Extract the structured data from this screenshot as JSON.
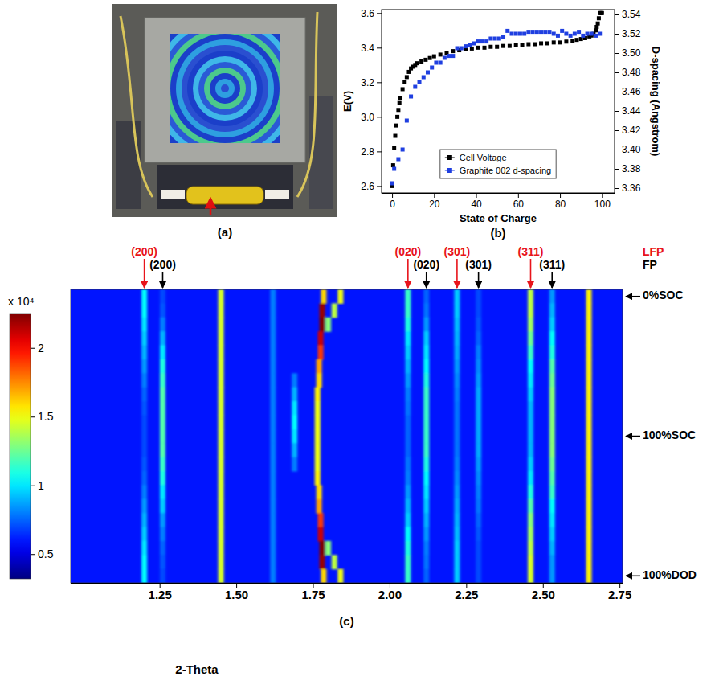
{
  "photo": {
    "panel": "(a)"
  },
  "chart_data": [
    {
      "type": "scatter",
      "panel": "(b)",
      "x_label": "State of Charge",
      "y_label": "E(V)",
      "y2_label": "D-spacing (Angstrom)",
      "xlim": [
        -5,
        106
      ],
      "xticks": [
        0,
        20,
        40,
        60,
        80,
        100
      ],
      "ylim": [
        2.56,
        3.62
      ],
      "yticks": [
        2.6,
        2.8,
        {
          "value": 3,
          "label": "3.0"
        },
        3.2,
        3.4,
        3.6
      ],
      "y2lim": [
        3.355,
        3.545
      ],
      "y2ticks": [
        3.36,
        3.38,
        {
          "value": 3.4,
          "label": "3.40"
        },
        3.42,
        3.44,
        3.46,
        3.48,
        {
          "value": 3.5,
          "label": "3.50"
        },
        3.52,
        3.54
      ],
      "legend": "lower center",
      "series": [
        {
          "name": "Cell Voltage",
          "color": "#000000",
          "marker": "square",
          "x": [
            0,
            0.5,
            1,
            1.5,
            2,
            2.5,
            3,
            3.5,
            4,
            5,
            6,
            7,
            8,
            9,
            10,
            11,
            12,
            14,
            16,
            18,
            20,
            23,
            26,
            29,
            32,
            35,
            38,
            41,
            44,
            47,
            50,
            53,
            56,
            59,
            62,
            65,
            68,
            71,
            74,
            77,
            80,
            83,
            86,
            88,
            90,
            92,
            94,
            95,
            96,
            97,
            97.5,
            98,
            98.5,
            99,
            99.5,
            100
          ],
          "values": [
            2.6,
            2.72,
            2.82,
            2.89,
            2.95,
            3.0,
            3.04,
            3.08,
            3.11,
            3.16,
            3.2,
            3.23,
            3.26,
            3.28,
            3.29,
            3.3,
            3.31,
            3.32,
            3.33,
            3.34,
            3.35,
            3.36,
            3.37,
            3.38,
            3.385,
            3.39,
            3.395,
            3.4,
            3.4,
            3.405,
            3.405,
            3.41,
            3.41,
            3.415,
            3.415,
            3.42,
            3.42,
            3.425,
            3.425,
            3.43,
            3.43,
            3.435,
            3.44,
            3.445,
            3.45,
            3.455,
            3.465,
            3.47,
            3.48,
            3.5,
            3.52,
            3.54,
            3.57,
            3.6,
            3.6,
            3.6
          ]
        },
        {
          "name": "Graphite 002 d-spacing",
          "color": "#1f3fe0",
          "marker": "square",
          "axis": "y2",
          "x": [
            0,
            1,
            3,
            5,
            7,
            9,
            11,
            13,
            15,
            17,
            19,
            21,
            23,
            25,
            27,
            29,
            31,
            33,
            35,
            37,
            39,
            41,
            43,
            45,
            47,
            49,
            51,
            53,
            55,
            57,
            59,
            61,
            63,
            65,
            67,
            69,
            71,
            73,
            75,
            77,
            79,
            81,
            83,
            85,
            87,
            89,
            91,
            93,
            95,
            97,
            99
          ],
          "values": [
            3.365,
            3.38,
            3.39,
            3.4,
            3.43,
            3.455,
            3.465,
            3.47,
            3.475,
            3.48,
            3.485,
            3.49,
            3.49,
            3.495,
            3.497,
            3.497,
            3.505,
            3.505,
            3.507,
            3.508,
            3.51,
            3.512,
            3.512,
            3.512,
            3.515,
            3.515,
            3.515,
            3.517,
            3.523,
            3.52,
            3.52,
            3.52,
            3.52,
            3.522,
            3.522,
            3.522,
            3.522,
            3.522,
            3.522,
            3.52,
            3.518,
            3.523,
            3.52,
            3.518,
            3.52,
            3.522,
            3.518,
            3.52,
            3.52,
            3.518,
            3.52
          ]
        }
      ]
    },
    {
      "type": "heatmap",
      "panel": "(c)",
      "x_label": "2-Theta",
      "xlim": [
        0.96,
        2.76
      ],
      "xticks": [
        1.25,
        {
          "value": 1.5,
          "label": "1.50"
        },
        1.75,
        {
          "value": 2,
          "label": "2.00"
        },
        2.25,
        {
          "value": 2.5,
          "label": "2.50"
        },
        2.75
      ],
      "categories": [
        "0%SOC",
        null,
        null,
        null,
        null,
        null,
        null,
        null,
        null,
        null,
        "100%SOC",
        null,
        null,
        null,
        null,
        null,
        null,
        null,
        null,
        null,
        "100%DOD"
      ],
      "colorbar": {
        "label": "x 10⁴",
        "range": [
          0.32,
          2.25
        ],
        "ticks": [
          0.5,
          1,
          1.5,
          2
        ]
      },
      "background": 0.6,
      "phases": [
        {
          "name": "LFP",
          "color": "#e8141b",
          "peaks": [
            {
              "label": "(200)",
              "x": 1.2
            },
            {
              "label": "(020)",
              "x": 2.06
            },
            {
              "label": "(301)",
              "x": 2.22
            },
            {
              "label": "(311)",
              "x": 2.46
            }
          ]
        },
        {
          "name": "FP",
          "color": "#000000",
          "peaks": [
            {
              "label": "(200)",
              "x": 1.26
            },
            {
              "label": "(020)",
              "x": 2.12
            },
            {
              "label": "(301)",
              "x": 2.29
            },
            {
              "label": "(311)",
              "x": 2.53
            }
          ]
        }
      ],
      "peaks": [
        {
          "x": 1.2,
          "values": [
            1.05,
            1.05,
            1.0,
            0.95,
            0.9,
            0.85,
            0.8,
            0.75,
            0.72,
            0.7,
            0.7,
            0.7,
            0.72,
            0.75,
            0.8,
            0.85,
            0.9,
            0.95,
            1.0,
            1.05,
            1.05
          ]
        },
        {
          "x": 1.26,
          "values": [
            0.7,
            0.72,
            0.8,
            0.9,
            1.0,
            1.1,
            1.15,
            1.2,
            1.2,
            1.2,
            1.2,
            1.2,
            1.15,
            1.1,
            1.0,
            0.95,
            0.85,
            0.8,
            0.75,
            0.72,
            0.7
          ]
        },
        {
          "x": 1.45,
          "values": [
            1.45,
            1.45,
            1.45,
            1.45,
            1.45,
            1.45,
            1.45,
            1.45,
            1.45,
            1.45,
            1.45,
            1.45,
            1.45,
            1.45,
            1.45,
            1.45,
            1.45,
            1.45,
            1.45,
            1.45,
            1.45
          ]
        },
        {
          "x": 1.62,
          "values": [
            0.8,
            0.8,
            0.8,
            0.8,
            0.8,
            0.8,
            0.8,
            0.8,
            0.8,
            0.8,
            0.8,
            0.8,
            0.8,
            0.8,
            0.8,
            0.8,
            0.8,
            0.8,
            0.8,
            0.8,
            0.8
          ]
        },
        {
          "x": 1.69,
          "values": [
            null,
            null,
            null,
            null,
            null,
            null,
            0.8,
            0.9,
            1.0,
            1.05,
            1.0,
            0.9,
            0.8,
            null,
            null,
            null,
            null,
            null,
            null,
            null,
            null
          ]
        },
        {
          "x": [
            1.785,
            1.78,
            1.78,
            1.775,
            1.775,
            1.77,
            1.77,
            1.765,
            1.765,
            1.765,
            1.765,
            1.765,
            1.765,
            1.765,
            1.77,
            1.77,
            1.775,
            1.775,
            1.78,
            1.78,
            1.785
          ],
          "values": [
            1.6,
            2.2,
            2.25,
            2.1,
            1.9,
            1.7,
            1.6,
            1.55,
            1.5,
            1.5,
            1.5,
            1.5,
            1.5,
            1.55,
            1.6,
            1.7,
            1.9,
            2.1,
            2.25,
            2.2,
            1.6
          ]
        },
        {
          "x": [
            1.84,
            1.82,
            1.8,
            null,
            null,
            null,
            null,
            null,
            null,
            null,
            null,
            null,
            null,
            null,
            null,
            null,
            null,
            null,
            1.8,
            1.82,
            1.84
          ],
          "values": [
            1.5,
            1.4,
            1.3,
            null,
            null,
            null,
            null,
            null,
            null,
            null,
            null,
            null,
            null,
            null,
            null,
            null,
            null,
            null,
            1.3,
            1.4,
            1.5
          ]
        },
        {
          "x": 2.06,
          "values": [
            1.15,
            1.15,
            1.1,
            1.0,
            0.95,
            0.9,
            0.85,
            0.8,
            0.78,
            0.75,
            0.75,
            0.75,
            0.78,
            0.8,
            0.85,
            0.9,
            0.95,
            1.05,
            1.1,
            1.15,
            1.15
          ]
        },
        {
          "x": 2.12,
          "values": [
            0.75,
            0.78,
            0.85,
            0.95,
            1.0,
            1.05,
            1.1,
            1.15,
            1.15,
            1.15,
            1.15,
            1.15,
            1.1,
            1.05,
            1.0,
            0.95,
            0.9,
            0.85,
            0.8,
            0.78,
            0.75
          ]
        },
        {
          "x": 2.22,
          "values": [
            0.95,
            0.95,
            0.92,
            0.9,
            0.88,
            0.85,
            0.82,
            0.8,
            0.78,
            0.78,
            0.78,
            0.78,
            0.8,
            0.82,
            0.85,
            0.88,
            0.9,
            0.92,
            0.95,
            0.95,
            0.95
          ]
        },
        {
          "x": 2.29,
          "values": [
            0.7,
            0.7,
            0.72,
            0.75,
            0.8,
            0.82,
            0.85,
            0.88,
            0.88,
            0.88,
            0.88,
            0.88,
            0.85,
            0.82,
            0.8,
            0.78,
            0.75,
            0.72,
            0.7,
            0.7,
            0.7
          ]
        },
        {
          "x": 2.46,
          "values": [
            1.4,
            1.4,
            1.35,
            1.25,
            1.15,
            1.05,
            1.0,
            0.95,
            0.9,
            0.9,
            0.9,
            0.9,
            0.95,
            1.0,
            1.1,
            1.2,
            1.3,
            1.35,
            1.4,
            1.45,
            1.45
          ]
        },
        {
          "x": 2.53,
          "values": [
            0.85,
            0.9,
            0.95,
            1.05,
            1.1,
            1.2,
            1.25,
            1.3,
            1.3,
            1.3,
            1.3,
            1.3,
            1.25,
            1.2,
            1.15,
            1.05,
            1.0,
            0.95,
            0.9,
            0.85,
            0.85
          ]
        },
        {
          "x": 2.65,
          "values": [
            1.55,
            1.55,
            1.55,
            1.55,
            1.55,
            1.55,
            1.55,
            1.55,
            1.55,
            1.55,
            1.55,
            1.55,
            1.55,
            1.55,
            1.55,
            1.55,
            1.55,
            1.55,
            1.55,
            1.55,
            1.55
          ]
        }
      ]
    }
  ]
}
